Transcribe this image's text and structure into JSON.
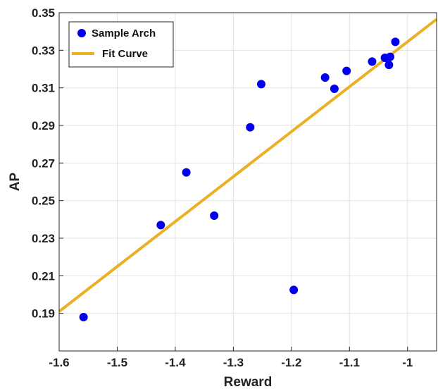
{
  "chart_data": {
    "type": "scatter",
    "title": "",
    "xlabel": "Reward",
    "ylabel": "AP",
    "xlim": [
      -1.6,
      -0.95
    ],
    "ylim": [
      0.17,
      0.35
    ],
    "x_ticks": [
      -1.6,
      -1.5,
      -1.4,
      -1.3,
      -1.2,
      -1.1,
      -1.0
    ],
    "x_tick_labels": [
      "-1.6",
      "-1.5",
      "-1.4",
      "-1.3",
      "-1.2",
      "-1.1",
      "-1"
    ],
    "y_ticks": [
      0.19,
      0.21,
      0.23,
      0.25,
      0.27,
      0.29,
      0.31,
      0.33,
      0.35
    ],
    "y_tick_labels": [
      "0.19",
      "0.21",
      "0.23",
      "0.25",
      "0.27",
      "0.29",
      "0.31",
      "0.33",
      "0.35"
    ],
    "grid": true,
    "legend_position": "top-left",
    "series": [
      {
        "name": "Sample Arch",
        "kind": "scatter",
        "color": "#0000ee",
        "points": [
          {
            "x": -1.558,
            "y": 0.188
          },
          {
            "x": -1.425,
            "y": 0.237
          },
          {
            "x": -1.381,
            "y": 0.265
          },
          {
            "x": -1.333,
            "y": 0.242
          },
          {
            "x": -1.271,
            "y": 0.289
          },
          {
            "x": -1.252,
            "y": 0.312
          },
          {
            "x": -1.196,
            "y": 0.2025
          },
          {
            "x": -1.142,
            "y": 0.3155
          },
          {
            "x": -1.126,
            "y": 0.3095
          },
          {
            "x": -1.105,
            "y": 0.319
          },
          {
            "x": -1.061,
            "y": 0.324
          },
          {
            "x": -1.039,
            "y": 0.326
          },
          {
            "x": -1.032,
            "y": 0.3222
          },
          {
            "x": -1.03,
            "y": 0.3265
          },
          {
            "x": -1.021,
            "y": 0.3345
          }
        ]
      },
      {
        "name": "Fit Curve",
        "kind": "line",
        "color": "#eab127",
        "points": [
          {
            "x": -1.6,
            "y": 0.191
          },
          {
            "x": -0.95,
            "y": 0.3465
          }
        ]
      }
    ]
  }
}
